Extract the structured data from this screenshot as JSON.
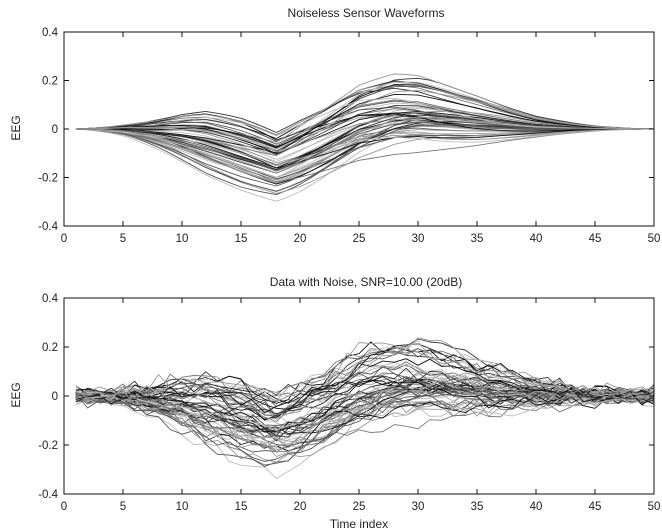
{
  "chart_data": [
    {
      "type": "line",
      "title": "Noiseless Sensor Waveforms",
      "xlabel": "",
      "ylabel": "EEG",
      "xlim": [
        0,
        50
      ],
      "ylim": [
        -0.4,
        0.4
      ],
      "xticks": [
        0,
        5,
        10,
        15,
        20,
        25,
        30,
        35,
        40,
        45,
        50
      ],
      "yticks": [
        -0.4,
        -0.2,
        0,
        0.2,
        0.4
      ],
      "yticklabels": [
        "-0.4",
        "-0.2",
        "0",
        "0.2",
        "0.4"
      ],
      "grid": false,
      "x": [
        1,
        50
      ],
      "n_series": 60,
      "envelope": {
        "x": [
          1,
          5,
          10,
          12,
          15,
          18,
          20,
          25,
          28,
          30,
          35,
          40,
          45,
          50
        ],
        "max": [
          0,
          0.06,
          0.13,
          0.14,
          0.09,
          0.02,
          0.08,
          0.21,
          0.24,
          0.23,
          0.16,
          0.08,
          0.03,
          0
        ],
        "min": [
          0,
          -0.08,
          -0.22,
          -0.27,
          -0.31,
          -0.33,
          -0.29,
          -0.17,
          -0.12,
          -0.1,
          -0.08,
          -0.05,
          -0.02,
          0
        ]
      },
      "series_color": "#111111"
    },
    {
      "type": "line",
      "title": "Data with Noise, SNR=10.00 (20dB)",
      "xlabel": "Time index",
      "ylabel": "EEG",
      "xlim": [
        0,
        50
      ],
      "ylim": [
        -0.4,
        0.4
      ],
      "xticks": [
        0,
        5,
        10,
        15,
        20,
        25,
        30,
        35,
        40,
        45,
        50
      ],
      "yticks": [
        -0.4,
        -0.2,
        0,
        0.2,
        0.4
      ],
      "yticklabels": [
        "-0.4",
        "-0.2",
        "0",
        "0.2",
        "0.4"
      ],
      "grid": false,
      "x": [
        1,
        50
      ],
      "n_series": 60,
      "noise_std": 0.015,
      "envelope": {
        "x": [
          1,
          5,
          10,
          12,
          15,
          18,
          20,
          25,
          28,
          30,
          35,
          40,
          45,
          50
        ],
        "max": [
          0.04,
          0.08,
          0.15,
          0.16,
          0.12,
          0.06,
          0.1,
          0.23,
          0.25,
          0.24,
          0.18,
          0.1,
          0.05,
          0.04
        ],
        "min": [
          -0.04,
          -0.1,
          -0.24,
          -0.29,
          -0.33,
          -0.34,
          -0.31,
          -0.19,
          -0.14,
          -0.12,
          -0.1,
          -0.07,
          -0.04,
          -0.04
        ]
      },
      "series_color": "#111111"
    }
  ]
}
